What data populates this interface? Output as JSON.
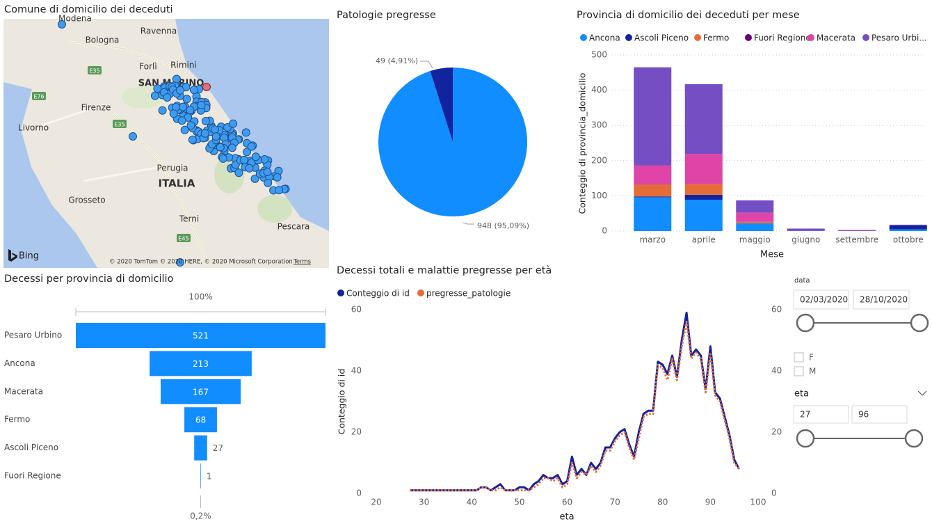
{
  "map": {
    "title": "Comune di domicilio dei deceduti",
    "places": [
      "Modena",
      "Ravenna",
      "Bologna",
      "Forlì",
      "Rimini",
      "SAN MARINO",
      "Firenze",
      "Livorno",
      "Perugia",
      "ITALIA",
      "Grosseto",
      "Terni",
      "Pescara"
    ],
    "roads": [
      "E35",
      "E76",
      "E35",
      "E45"
    ],
    "attribution": "Bing",
    "copyright": "© 2020 TomTom © 2020 HERE, © 2020 Microsoft Corporation",
    "terms": "Terms"
  },
  "chart_data": [
    {
      "type": "pie",
      "title": "Patologie pregresse",
      "values": [
        948,
        49
      ],
      "value_labels": [
        "948 (95,09%)",
        "49 (4,91%)"
      ],
      "colors": [
        "#118dff",
        "#12239e"
      ]
    },
    {
      "type": "stacked_bar",
      "title": "Provincia di domicilio dei deceduti per mese",
      "xlabel": "Mese",
      "ylabel": "Conteggio di provincia_domicilio",
      "categories": [
        "marzo",
        "aprile",
        "maggio",
        "giugno",
        "settembre",
        "ottobre"
      ],
      "series": [
        {
          "name": "Ancona",
          "color": "#118dff",
          "values": [
            96,
            89,
            22,
            1,
            0,
            5
          ]
        },
        {
          "name": "Ascoli Piceno",
          "color": "#12239e",
          "values": [
            2,
            14,
            0,
            0,
            0,
            11
          ]
        },
        {
          "name": "Fermo",
          "color": "#e66c37",
          "values": [
            34,
            30,
            4,
            0,
            0,
            0
          ]
        },
        {
          "name": "Fuori Regione",
          "color": "#6b007b",
          "values": [
            1,
            0,
            0,
            0,
            0,
            0
          ]
        },
        {
          "name": "Macerata",
          "color": "#e044a7",
          "values": [
            53,
            86,
            26,
            1,
            1,
            0
          ]
        },
        {
          "name": "Pesaro Urbi...",
          "color": "#744ec2",
          "values": [
            279,
            198,
            35,
            5,
            2,
            2
          ]
        }
      ],
      "ylim": [
        0,
        500
      ],
      "yticks": [
        0,
        100,
        200,
        300,
        400,
        500
      ],
      "grid": true
    },
    {
      "type": "funnel",
      "title": "Decessi per provincia di domicilio",
      "categories": [
        "Pesaro Urbino",
        "Ancona",
        "Macerata",
        "Fermo",
        "Ascoli Piceno",
        "Fuori Regione"
      ],
      "values": [
        521,
        213,
        167,
        68,
        27,
        1
      ],
      "top_label": "100%",
      "bottom_label": "0,2%",
      "color": "#118dff"
    },
    {
      "type": "line",
      "title": "Decessi totali e malattie pregresse per età",
      "xlabel": "eta",
      "ylabel": "Conteggio di id",
      "x": [
        27,
        28,
        29,
        30,
        31,
        32,
        33,
        34,
        35,
        36,
        37,
        38,
        39,
        40,
        41,
        42,
        43,
        44,
        45,
        46,
        47,
        48,
        49,
        50,
        51,
        52,
        53,
        54,
        55,
        56,
        57,
        58,
        59,
        60,
        61,
        62,
        63,
        64,
        65,
        66,
        67,
        68,
        69,
        70,
        71,
        72,
        73,
        74,
        75,
        76,
        77,
        78,
        79,
        80,
        81,
        82,
        83,
        84,
        85,
        86,
        87,
        88,
        89,
        90,
        91,
        92,
        93,
        94,
        95,
        96
      ],
      "series": [
        {
          "name": "Conteggio di id",
          "color": "#12239e",
          "values": [
            1,
            1,
            1,
            1,
            1,
            1,
            1,
            1,
            1,
            1,
            1,
            1,
            1,
            1,
            1,
            2,
            2,
            1,
            2,
            3,
            1,
            1,
            1,
            2,
            2,
            1,
            3,
            4,
            6,
            5,
            5,
            6,
            3,
            4,
            12,
            6,
            8,
            6,
            10,
            8,
            10,
            15,
            15,
            18,
            20,
            21,
            16,
            12,
            20,
            26,
            27,
            27,
            43,
            42,
            39,
            45,
            38,
            50,
            59,
            45,
            47,
            45,
            34,
            48,
            33,
            31,
            25,
            19,
            11,
            8
          ]
        },
        {
          "name": "pregresse_patologie",
          "color": "#e66c37",
          "axis": "y2",
          "values": [
            1,
            1,
            1,
            1,
            1,
            1,
            1,
            1,
            1,
            1,
            1,
            1,
            1,
            1,
            1,
            2,
            2,
            1,
            1,
            2,
            1,
            1,
            1,
            1,
            1,
            1,
            2,
            3,
            5,
            5,
            4,
            5,
            2,
            3,
            10,
            5,
            7,
            6,
            9,
            7,
            9,
            14,
            14,
            17,
            19,
            20,
            15,
            11,
            18,
            25,
            26,
            26,
            42,
            41,
            37,
            44,
            37,
            48,
            56,
            44,
            46,
            44,
            33,
            46,
            32,
            30,
            24,
            18,
            10,
            8
          ]
        }
      ],
      "xlim": [
        20,
        100
      ],
      "xticks": [
        20,
        30,
        40,
        50,
        60,
        70,
        80,
        90,
        100
      ],
      "ylim": [
        0,
        60
      ],
      "yticks": [
        0,
        20,
        40,
        60
      ],
      "y2lim": [
        0,
        60
      ],
      "y2ticks": [
        0,
        20,
        40,
        60
      ]
    }
  ],
  "slicers": {
    "date": {
      "label": "data",
      "start": "02/03/2020",
      "end": "28/10/2020"
    },
    "sex": [
      "F",
      "M"
    ],
    "age": {
      "label": "eta",
      "min": 27,
      "max": 96
    }
  }
}
